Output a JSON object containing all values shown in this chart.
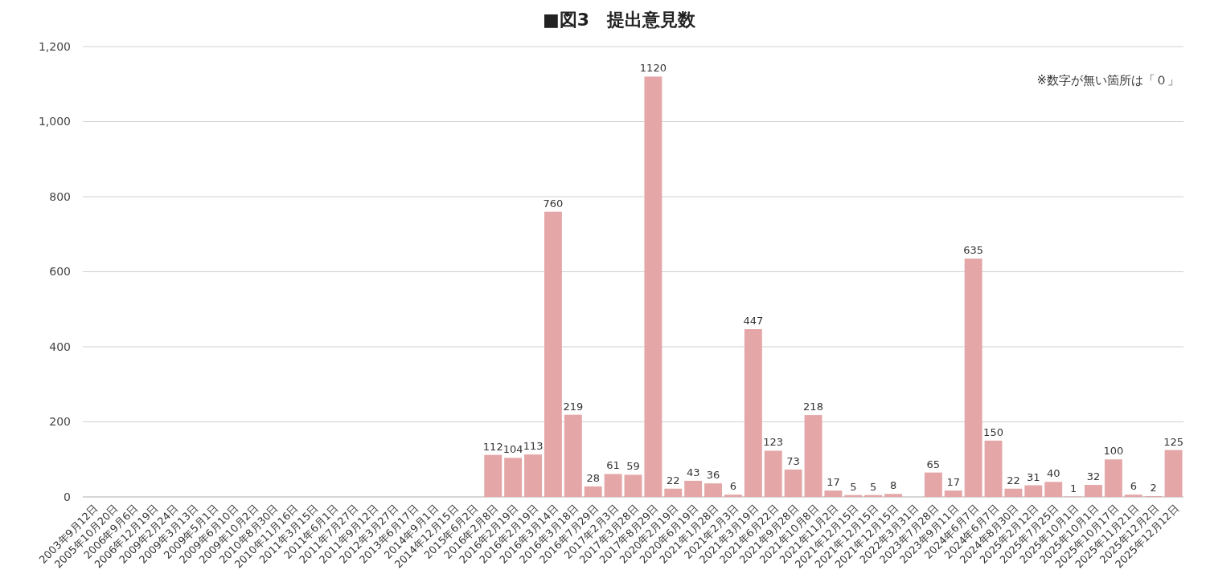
{
  "chart_data": {
    "type": "bar",
    "title": "■図3　提出意見数",
    "categories": [
      "2003年9月12日",
      "2005年10月20日",
      "2006年9月6日",
      "2006年12月19日",
      "2009年2月24日",
      "2009年3月13日",
      "2009年5月1日",
      "2009年6月10日",
      "2009年10月2日",
      "2010年8月30日",
      "2010年11月16日",
      "2011年3月15日",
      "2011年6月1日",
      "2011年7月27日",
      "2011年9月12日",
      "2012年3月27日",
      "2013年6月17日",
      "2014年9月1日",
      "2014年12月15日",
      "2015年6月2日",
      "2016年2月8日",
      "2016年2月19日",
      "2016年2月19日",
      "2016年3月14日",
      "2016年3月18日",
      "2016年7月29日",
      "2017年2月3日",
      "2017年3月28日",
      "2017年8月29日",
      "2020年2月19日",
      "2020年6月19日",
      "2021年1月28日",
      "2021年2月3日",
      "2021年3月19日",
      "2021年6月22日",
      "2021年9月28日",
      "2021年10月8日",
      "2021年11月2日",
      "2021年12月15日",
      "2021年12月15日",
      "2021年12月15日",
      "2022年3月31日",
      "2023年7月28日",
      "2023年9月11日",
      "2024年6月7日",
      "2024年6月7日",
      "2024年8月30日",
      "2025年2月12日",
      "2025年7月25日",
      "2025年10月1日",
      "2025年10月1日",
      "2025年10月17日",
      "2025年11月21日",
      "2025年12月2日",
      "2025年12月12日"
    ],
    "values": [
      0,
      0,
      0,
      0,
      0,
      0,
      0,
      0,
      0,
      0,
      0,
      0,
      0,
      0,
      0,
      0,
      0,
      0,
      0,
      0,
      112,
      104,
      113,
      760,
      219,
      28,
      61,
      59,
      1120,
      22,
      43,
      36,
      6,
      447,
      123,
      73,
      218,
      17,
      5,
      5,
      8,
      0,
      65,
      17,
      635,
      150,
      22,
      31,
      40,
      1,
      32,
      100,
      6,
      2,
      125
    ],
    "value_labels": [
      null,
      null,
      null,
      null,
      null,
      null,
      null,
      null,
      null,
      null,
      null,
      null,
      null,
      null,
      null,
      null,
      null,
      null,
      null,
      null,
      "112",
      "104",
      "113",
      "760",
      "219",
      "28",
      "61",
      "59",
      "1120",
      "22",
      "43",
      "36",
      "6",
      "447",
      "123",
      "73",
      "218",
      "17",
      "5",
      "5",
      "8",
      null,
      "65",
      "17",
      "635",
      "150",
      "22",
      "31",
      "40",
      "1",
      "32",
      "100",
      "6",
      "2",
      "125"
    ],
    "color": "#e4a6a7",
    "ylim": [
      0,
      1200
    ],
    "yticks": [
      0,
      200,
      400,
      600,
      800,
      {
        "value": 1000,
        "label": "1,000"
      },
      {
        "value": 1200,
        "label": "1,200"
      }
    ],
    "grid": "y",
    "annotations": [
      "※数字が無い箇所は「０」"
    ]
  }
}
